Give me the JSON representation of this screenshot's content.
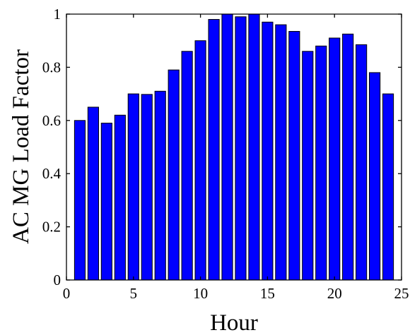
{
  "chart_data": {
    "type": "bar",
    "title": "",
    "xlabel": "Hour",
    "ylabel": "AC MG Load Factor",
    "x": [
      1,
      2,
      3,
      4,
      5,
      6,
      7,
      8,
      9,
      10,
      11,
      12,
      13,
      14,
      15,
      16,
      17,
      18,
      19,
      20,
      21,
      22,
      23,
      24
    ],
    "values": [
      0.6,
      0.65,
      0.59,
      0.62,
      0.7,
      0.698,
      0.71,
      0.79,
      0.86,
      0.9,
      0.98,
      1.0,
      0.99,
      1.0,
      0.97,
      0.96,
      0.935,
      0.86,
      0.88,
      0.91,
      0.925,
      0.885,
      0.78,
      0.7
    ],
    "xlim": [
      0,
      25
    ],
    "ylim": [
      0,
      1
    ],
    "xticks": [
      "0",
      "5",
      "10",
      "15",
      "20",
      "25"
    ],
    "yticks": [
      "0",
      "0.2",
      "0.4",
      "0.6",
      "0.8",
      "1"
    ],
    "bar_color": "#0000ff",
    "edge_color": "#000000",
    "grid": false,
    "legend": "none"
  }
}
